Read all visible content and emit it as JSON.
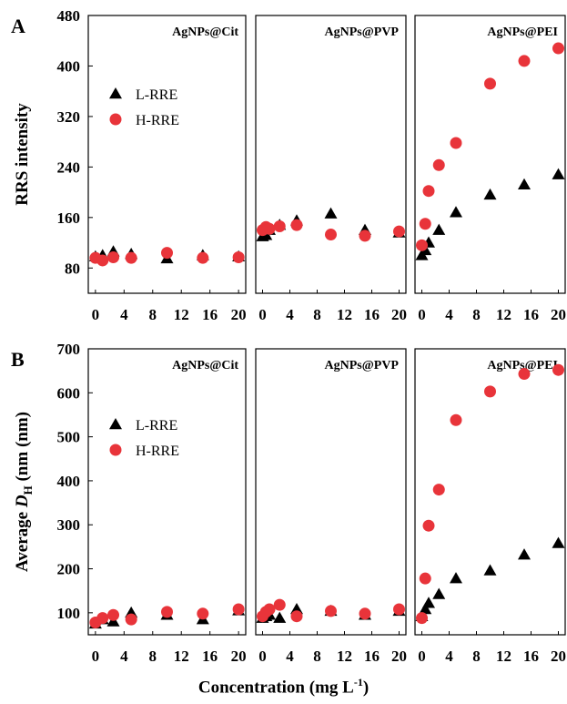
{
  "figure": {
    "xlabel_text": "Concentration (mg L",
    "xlabel_exp": "-1",
    "xlabel_close": ")",
    "marker_colors": {
      "L-RRE": "#000000",
      "H-RRE": "#e8343a"
    }
  },
  "chart_data": [
    {
      "type": "scatter",
      "panel_letter": "A",
      "ylabel": "RRS intensity",
      "ylim": [
        40,
        480
      ],
      "yticks": [
        80,
        160,
        240,
        320,
        400,
        480
      ],
      "xticks": [
        0,
        4,
        8,
        12,
        16,
        20
      ],
      "xlim": [
        -1,
        21
      ],
      "legend": [
        "L-RRE",
        "H-RRE"
      ],
      "subplots": [
        {
          "title": "AgNPs@Cit",
          "series": [
            {
              "name": "L-RRE",
              "x": [
                0,
                1,
                2.5,
                5,
                10,
                15,
                20
              ],
              "y": [
                98,
                100,
                106,
                102,
                95,
                100,
                98
              ]
            },
            {
              "name": "H-RRE",
              "x": [
                0,
                1,
                2.5,
                5,
                10,
                15,
                20
              ],
              "y": [
                96,
                92,
                97,
                96,
                104,
                96,
                97
              ]
            }
          ]
        },
        {
          "title": "AgNPs@PVP",
          "series": [
            {
              "name": "L-RRE",
              "x": [
                0,
                0.5,
                1,
                2.5,
                5,
                10,
                15,
                20
              ],
              "y": [
                130,
                132,
                140,
                148,
                155,
                166,
                140,
                136
              ]
            },
            {
              "name": "H-RRE",
              "x": [
                0,
                0.5,
                1,
                2.5,
                5,
                10,
                15,
                20
              ],
              "y": [
                140,
                145,
                142,
                146,
                148,
                133,
                131,
                138
              ]
            }
          ]
        },
        {
          "title": "AgNPs@PEI",
          "series": [
            {
              "name": "L-RRE",
              "x": [
                0,
                0.5,
                1,
                2.5,
                5,
                10,
                15,
                20
              ],
              "y": [
                100,
                108,
                120,
                140,
                168,
                196,
                212,
                228
              ]
            },
            {
              "name": "H-RRE",
              "x": [
                0,
                0.5,
                1,
                2.5,
                5,
                10,
                15,
                20
              ],
              "y": [
                116,
                150,
                202,
                243,
                278,
                372,
                408,
                428
              ]
            }
          ]
        }
      ]
    },
    {
      "type": "scatter",
      "panel_letter": "B",
      "ylabel": "Average D_H (nm (nm)",
      "ylabel_parts": [
        "Average ",
        "D",
        "H",
        " (nm (nm)"
      ],
      "ylim": [
        50,
        700
      ],
      "yticks": [
        100,
        200,
        300,
        400,
        500,
        600,
        700
      ],
      "xticks": [
        0,
        4,
        8,
        12,
        16,
        20
      ],
      "xlim": [
        -1,
        21
      ],
      "legend": [
        "L-RRE",
        "H-RRE"
      ],
      "subplots": [
        {
          "title": "AgNPs@Cit",
          "series": [
            {
              "name": "L-RRE",
              "x": [
                0,
                1,
                2.5,
                5,
                10,
                15,
                20
              ],
              "y": [
                75,
                85,
                80,
                100,
                95,
                85,
                105
              ]
            },
            {
              "name": "H-RRE",
              "x": [
                0,
                1,
                2.5,
                5,
                10,
                15,
                20
              ],
              "y": [
                78,
                88,
                95,
                85,
                102,
                98,
                108
              ]
            }
          ]
        },
        {
          "title": "AgNPs@PVP",
          "series": [
            {
              "name": "L-RRE",
              "x": [
                0,
                0.5,
                1,
                2.5,
                5,
                10,
                15,
                20
              ],
              "y": [
                88,
                92,
                95,
                88,
                108,
                104,
                95,
                104
              ]
            },
            {
              "name": "H-RRE",
              "x": [
                0,
                0.5,
                1,
                2.5,
                5,
                10,
                15,
                20
              ],
              "y": [
                92,
                102,
                108,
                118,
                92,
                104,
                98,
                108
              ]
            }
          ]
        },
        {
          "title": "AgNPs@PEI",
          "series": [
            {
              "name": "L-RRE",
              "x": [
                0,
                0.5,
                1,
                2.5,
                5,
                10,
                15,
                20
              ],
              "y": [
                92,
                108,
                122,
                142,
                178,
                196,
                232,
                258
              ]
            },
            {
              "name": "H-RRE",
              "x": [
                0,
                0.5,
                1,
                2.5,
                5,
                10,
                15,
                20
              ],
              "y": [
                88,
                178,
                298,
                380,
                538,
                603,
                643,
                652
              ]
            }
          ]
        }
      ]
    }
  ]
}
